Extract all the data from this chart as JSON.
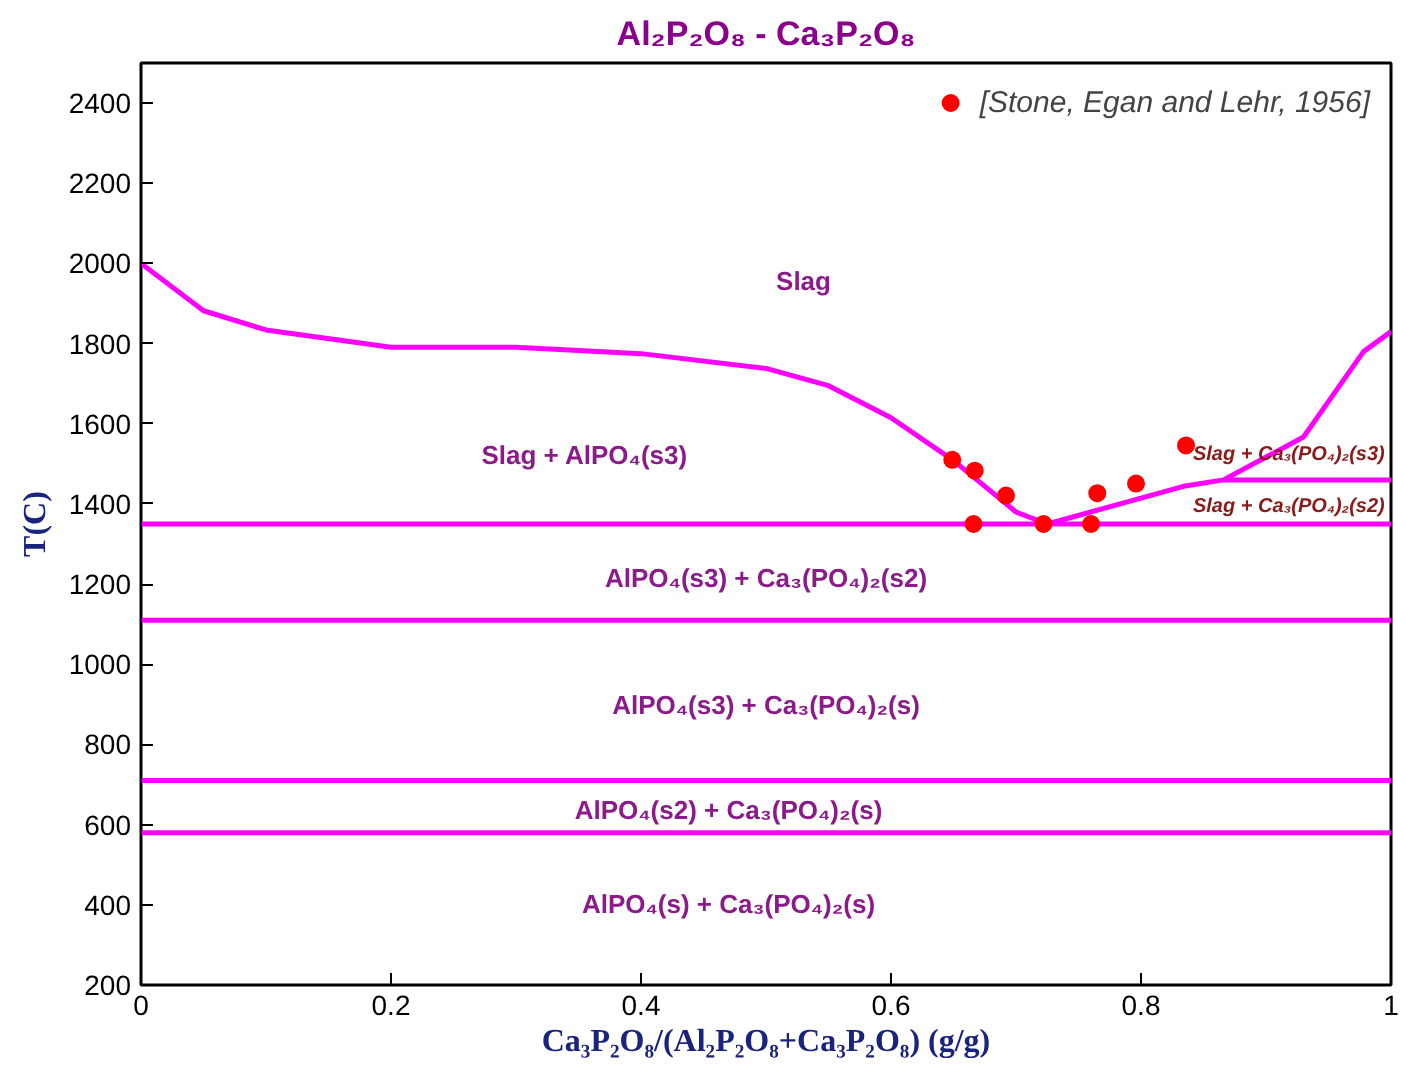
{
  "chart_data": {
    "type": "line",
    "title": "Al₂P₂O₈ - Ca₃P₂O₈",
    "xlabel": "Ca₃P₂O₈/(Al₂P₂O₈+Ca₃P₂O₈) (g/g)",
    "ylabel": "T(C)",
    "xlim": [
      0,
      1
    ],
    "ylim": [
      200,
      2500
    ],
    "xticks": [
      0,
      0.2,
      0.4,
      0.6,
      0.8,
      1
    ],
    "yticks": [
      200,
      400,
      600,
      800,
      1000,
      1200,
      1400,
      1600,
      1800,
      2000,
      2200,
      2400
    ],
    "grid": false,
    "legend": "top right",
    "line_style": "solid",
    "series": [
      {
        "color": "#ff00ff",
        "x": [
          0,
          0.05,
          0.1,
          0.2,
          0.3,
          0.4,
          0.5,
          0.55,
          0.6,
          0.65,
          0.7,
          0.725
        ],
        "values": [
          2000,
          1882,
          1834,
          1791,
          1791,
          1775,
          1738,
          1695,
          1615,
          1508,
          1380,
          1350
        ]
      },
      {
        "color": "#ff00ff",
        "x": [
          0.725,
          0.834,
          0.866,
          0.93,
          0.978,
          1.0
        ],
        "values": [
          1350,
          1444,
          1460,
          1567,
          1780,
          1830
        ]
      },
      {
        "color": "#ff00ff",
        "x": [
          0,
          1
        ],
        "values": [
          1350,
          1350
        ]
      },
      {
        "color": "#ff00ff",
        "x": [
          0.866,
          1
        ],
        "values": [
          1460,
          1460
        ]
      },
      {
        "color": "#ff00ff",
        "x": [
          0,
          1
        ],
        "values": [
          1110,
          1110
        ]
      },
      {
        "color": "#ff00ff",
        "x": [
          0,
          1
        ],
        "values": [
          710,
          710
        ]
      },
      {
        "color": "#ff00ff",
        "x": [
          0,
          1
        ],
        "values": [
          580,
          580
        ]
      },
      {
        "type": "scatter",
        "name": "[Stone, Egan and Lehr, 1956]",
        "color": "#ff0000",
        "marker": "circle",
        "x": [
          0.649,
          0.667,
          0.692,
          0.666,
          0.722,
          0.76,
          0.765,
          0.796,
          0.836
        ],
        "values": [
          1510,
          1483,
          1421,
          1350,
          1350,
          1350,
          1427,
          1451,
          1546
        ]
      }
    ],
    "annotations": [
      "Slag",
      "Slag + AlPO₄(s3)",
      "AlPO₄(s3) + Ca₃(PO₄)₂(s2)",
      "AlPO₄(s3) + Ca₃(PO₄)₂(s)",
      "AlPO₄(s2) + Ca₃(PO₄)₂(s)",
      "AlPO₄(s) + Ca₃(PO₄)₂(s)",
      "Slag + Ca₃(PO₄)₂(s3)",
      "Slag + Ca₃(PO₄)₂(s2)"
    ]
  }
}
